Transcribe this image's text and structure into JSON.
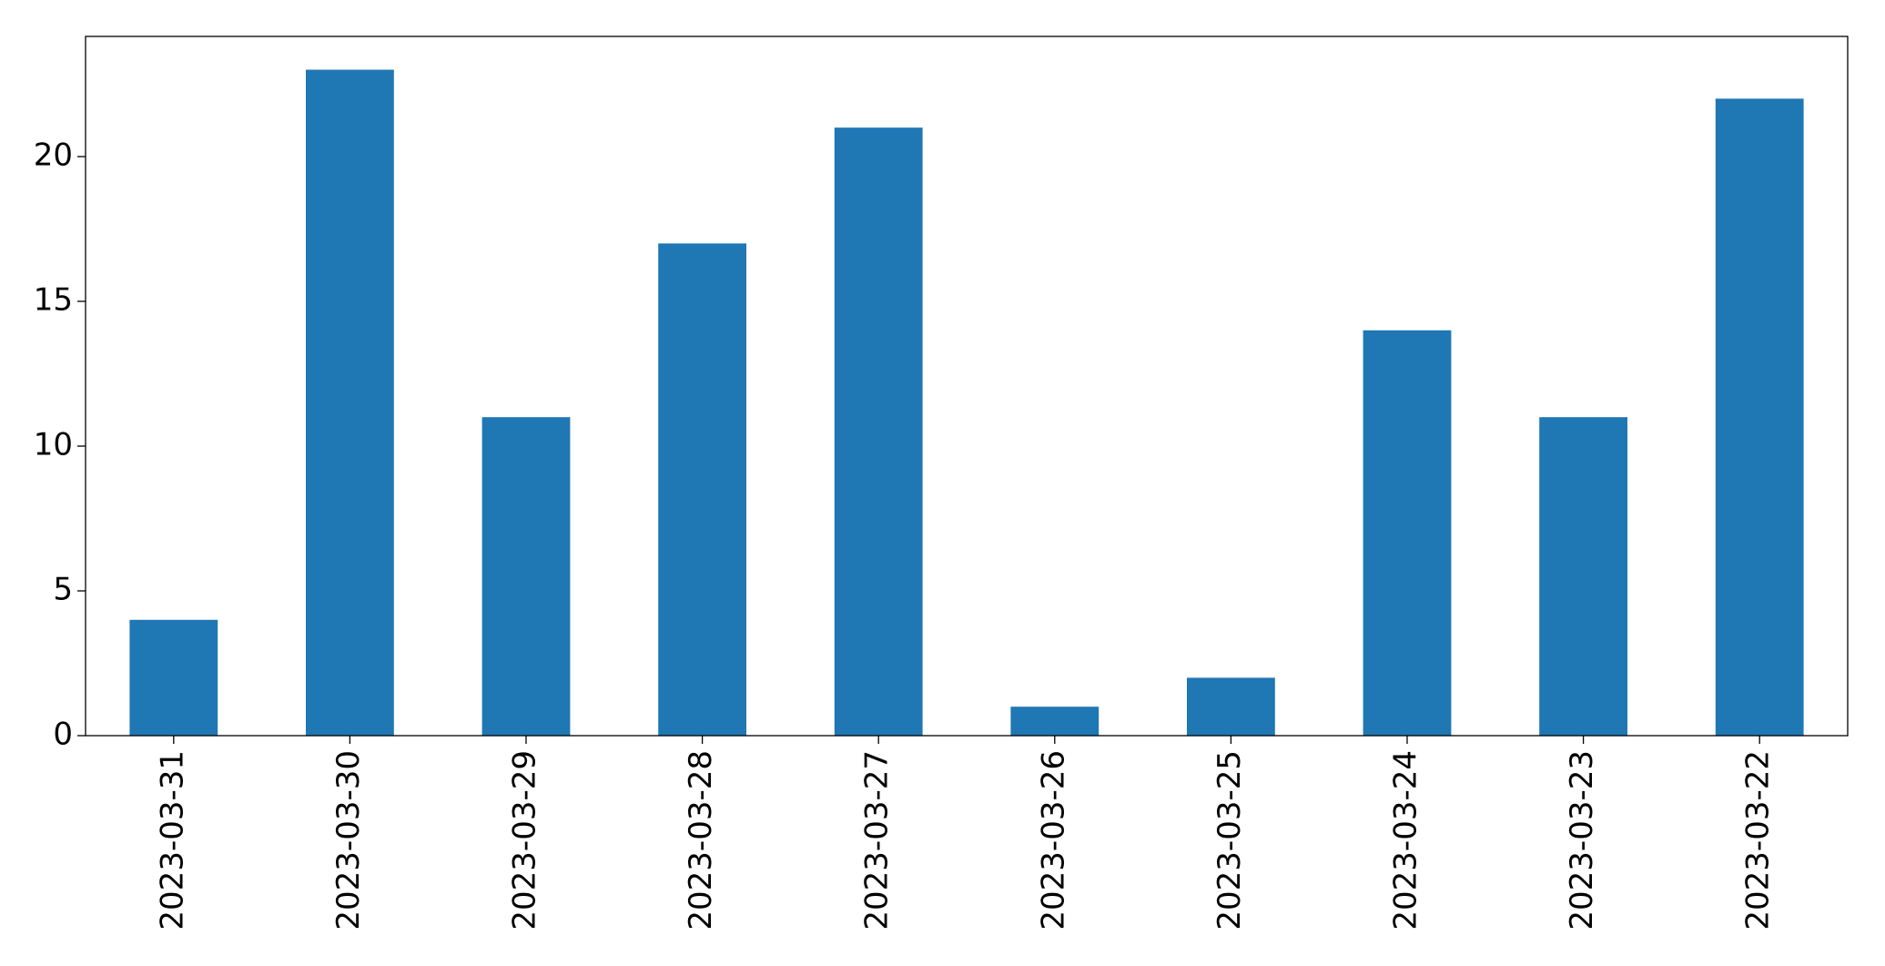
{
  "chart_data": {
    "type": "bar",
    "categories": [
      "2023-03-31",
      "2023-03-30",
      "2023-03-29",
      "2023-03-28",
      "2023-03-27",
      "2023-03-26",
      "2023-03-25",
      "2023-03-24",
      "2023-03-23",
      "2023-03-22"
    ],
    "values": [
      4,
      23,
      11,
      17,
      21,
      1,
      2,
      14,
      11,
      22
    ],
    "color": "#1f77b4",
    "ylim": [
      0,
      24.15
    ],
    "yticks": [
      0,
      5,
      10,
      15,
      20
    ],
    "grid": false
  }
}
